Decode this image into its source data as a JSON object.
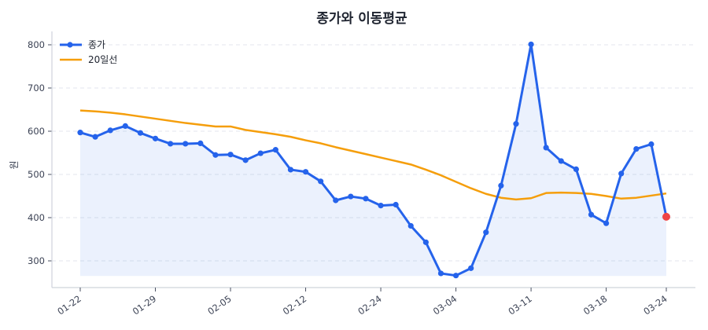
{
  "chart_data": {
    "type": "line",
    "title": "종가와 이동평균",
    "xlabel": "",
    "ylabel": "원",
    "ylim": [
      240,
      830
    ],
    "yticks": [
      300,
      400,
      500,
      600,
      700,
      800
    ],
    "grid": "horizontal dashed",
    "legend_position": "upper-left",
    "xtick_labels": [
      "01-22",
      "01-29",
      "02-05",
      "02-12",
      "02-24",
      "03-04",
      "03-11",
      "03-18",
      "03-24"
    ],
    "xtick_indices": [
      0,
      5,
      10,
      15,
      20,
      25,
      30,
      35,
      39
    ],
    "x": [
      "01-22",
      "01-23",
      "01-24",
      "01-25",
      "01-26",
      "01-29",
      "01-30",
      "01-31",
      "02-01",
      "02-02",
      "02-05",
      "02-06",
      "02-07",
      "02-08",
      "02-09",
      "02-12",
      "02-13",
      "02-14",
      "02-15",
      "02-16",
      "02-24",
      "02-25",
      "02-26",
      "02-27",
      "02-28",
      "03-04",
      "03-05",
      "03-06",
      "03-07",
      "03-08",
      "03-11",
      "03-12",
      "03-13",
      "03-14",
      "03-15",
      "03-18",
      "03-19",
      "03-20",
      "03-21",
      "03-24"
    ],
    "series": [
      {
        "name": "종가",
        "color": "#2563eb",
        "marker": "circle",
        "fill": true,
        "values": [
          597,
          587,
          602,
          612,
          596,
          583,
          571,
          571,
          572,
          545,
          546,
          533,
          549,
          557,
          511,
          506,
          484,
          440,
          449,
          444,
          428,
          430,
          381,
          343,
          271,
          266,
          283,
          366,
          474,
          617,
          801,
          562,
          531,
          512,
          407,
          387,
          502,
          559,
          570,
          402
        ]
      },
      {
        "name": "20일선",
        "color": "#f59e0b",
        "marker": "none",
        "fill": false,
        "values": [
          648,
          646,
          643,
          639,
          634,
          629,
          624,
          619,
          615,
          611,
          611,
          603,
          598,
          593,
          587,
          579,
          572,
          563,
          555,
          547,
          539,
          531,
          523,
          511,
          498,
          483,
          468,
          455,
          446,
          442,
          445,
          457,
          458,
          457,
          455,
          450,
          444,
          446,
          451,
          456
        ]
      }
    ],
    "highlight_last_point": {
      "color": "#ef4444",
      "value": 402
    }
  },
  "legend": {
    "items": [
      {
        "label": "종가",
        "color": "#2563eb"
      },
      {
        "label": "20일선",
        "color": "#f59e0b"
      }
    ]
  }
}
